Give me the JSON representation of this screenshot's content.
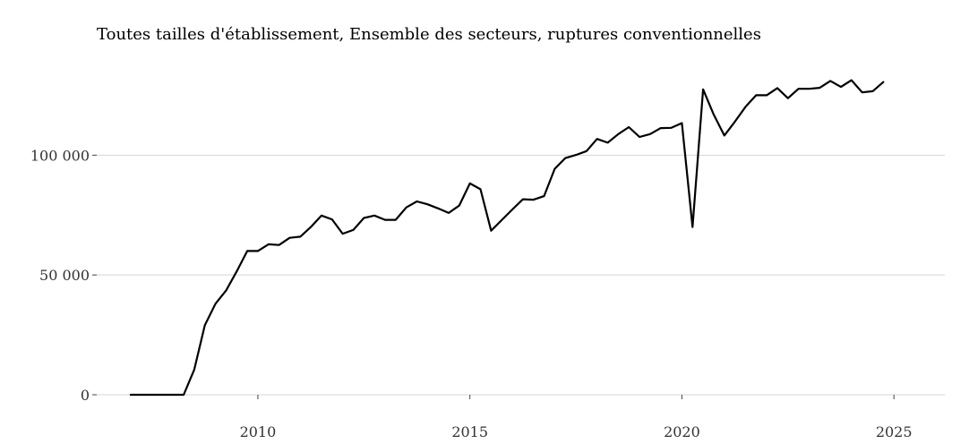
{
  "chart_data": {
    "type": "line",
    "title": "Toutes tailles d'établissement, Ensemble des secteurs, ruptures conventionnelles",
    "xlabel": "",
    "ylabel": "",
    "xlim": [
      2006.2,
      2026.2
    ],
    "ylim": [
      0,
      136000
    ],
    "x_ticks": [
      2010,
      2015,
      2020,
      2025
    ],
    "x_tick_labels": [
      "2010",
      "2015",
      "2020",
      "2025"
    ],
    "y_ticks": [
      0,
      50000,
      100000
    ],
    "y_tick_labels": [
      "0",
      "50 000",
      "100 000"
    ],
    "grid": "horizontal",
    "legend": "none",
    "colors": {
      "line": "#000000",
      "grid": "#d4d4d4"
    },
    "series": [
      {
        "x": [
          2007.0,
          2007.25,
          2007.5,
          2007.75,
          2008.0,
          2008.25,
          2008.5,
          2008.75,
          2009.0,
          2009.25,
          2009.5,
          2009.75,
          2010.0,
          2010.25,
          2010.5,
          2010.75,
          2011.0,
          2011.25,
          2011.5,
          2011.75,
          2012.0,
          2012.25,
          2012.5,
          2012.75,
          2013.0,
          2013.25,
          2013.5,
          2013.75,
          2014.0,
          2014.25,
          2014.5,
          2014.75,
          2015.0,
          2015.25,
          2015.5,
          2015.75,
          2016.0,
          2016.25,
          2016.5,
          2016.75,
          2017.0,
          2017.25,
          2017.5,
          2017.75,
          2018.0,
          2018.25,
          2018.5,
          2018.75,
          2019.0,
          2019.25,
          2019.5,
          2019.75,
          2020.0,
          2020.25,
          2020.5,
          2020.75,
          2021.0,
          2021.25,
          2021.5,
          2021.75,
          2022.0,
          2022.25,
          2022.5,
          2022.75,
          2023.0,
          2023.25,
          2023.5,
          2023.75,
          2024.0,
          2024.25,
          2024.5,
          2024.75
        ],
        "y": [
          0,
          0,
          0,
          0,
          0,
          0,
          10500,
          29000,
          38000,
          43500,
          51500,
          60000,
          60000,
          62800,
          62500,
          65500,
          66000,
          70000,
          74800,
          73200,
          67200,
          68800,
          73800,
          74800,
          73000,
          73000,
          78200,
          80700,
          79500,
          77800,
          75900,
          79000,
          88200,
          85800,
          68500,
          72900,
          77300,
          81600,
          81400,
          82900,
          94300,
          98800,
          100100,
          101700,
          106800,
          105200,
          108800,
          111700,
          107600,
          108800,
          111300,
          111400,
          113400,
          70000,
          127500,
          117000,
          108200,
          114000,
          120200,
          125000,
          125000,
          128000,
          123800,
          127700,
          127700,
          128100,
          131000,
          128500,
          131300,
          126200,
          126700,
          130500
        ]
      }
    ]
  }
}
